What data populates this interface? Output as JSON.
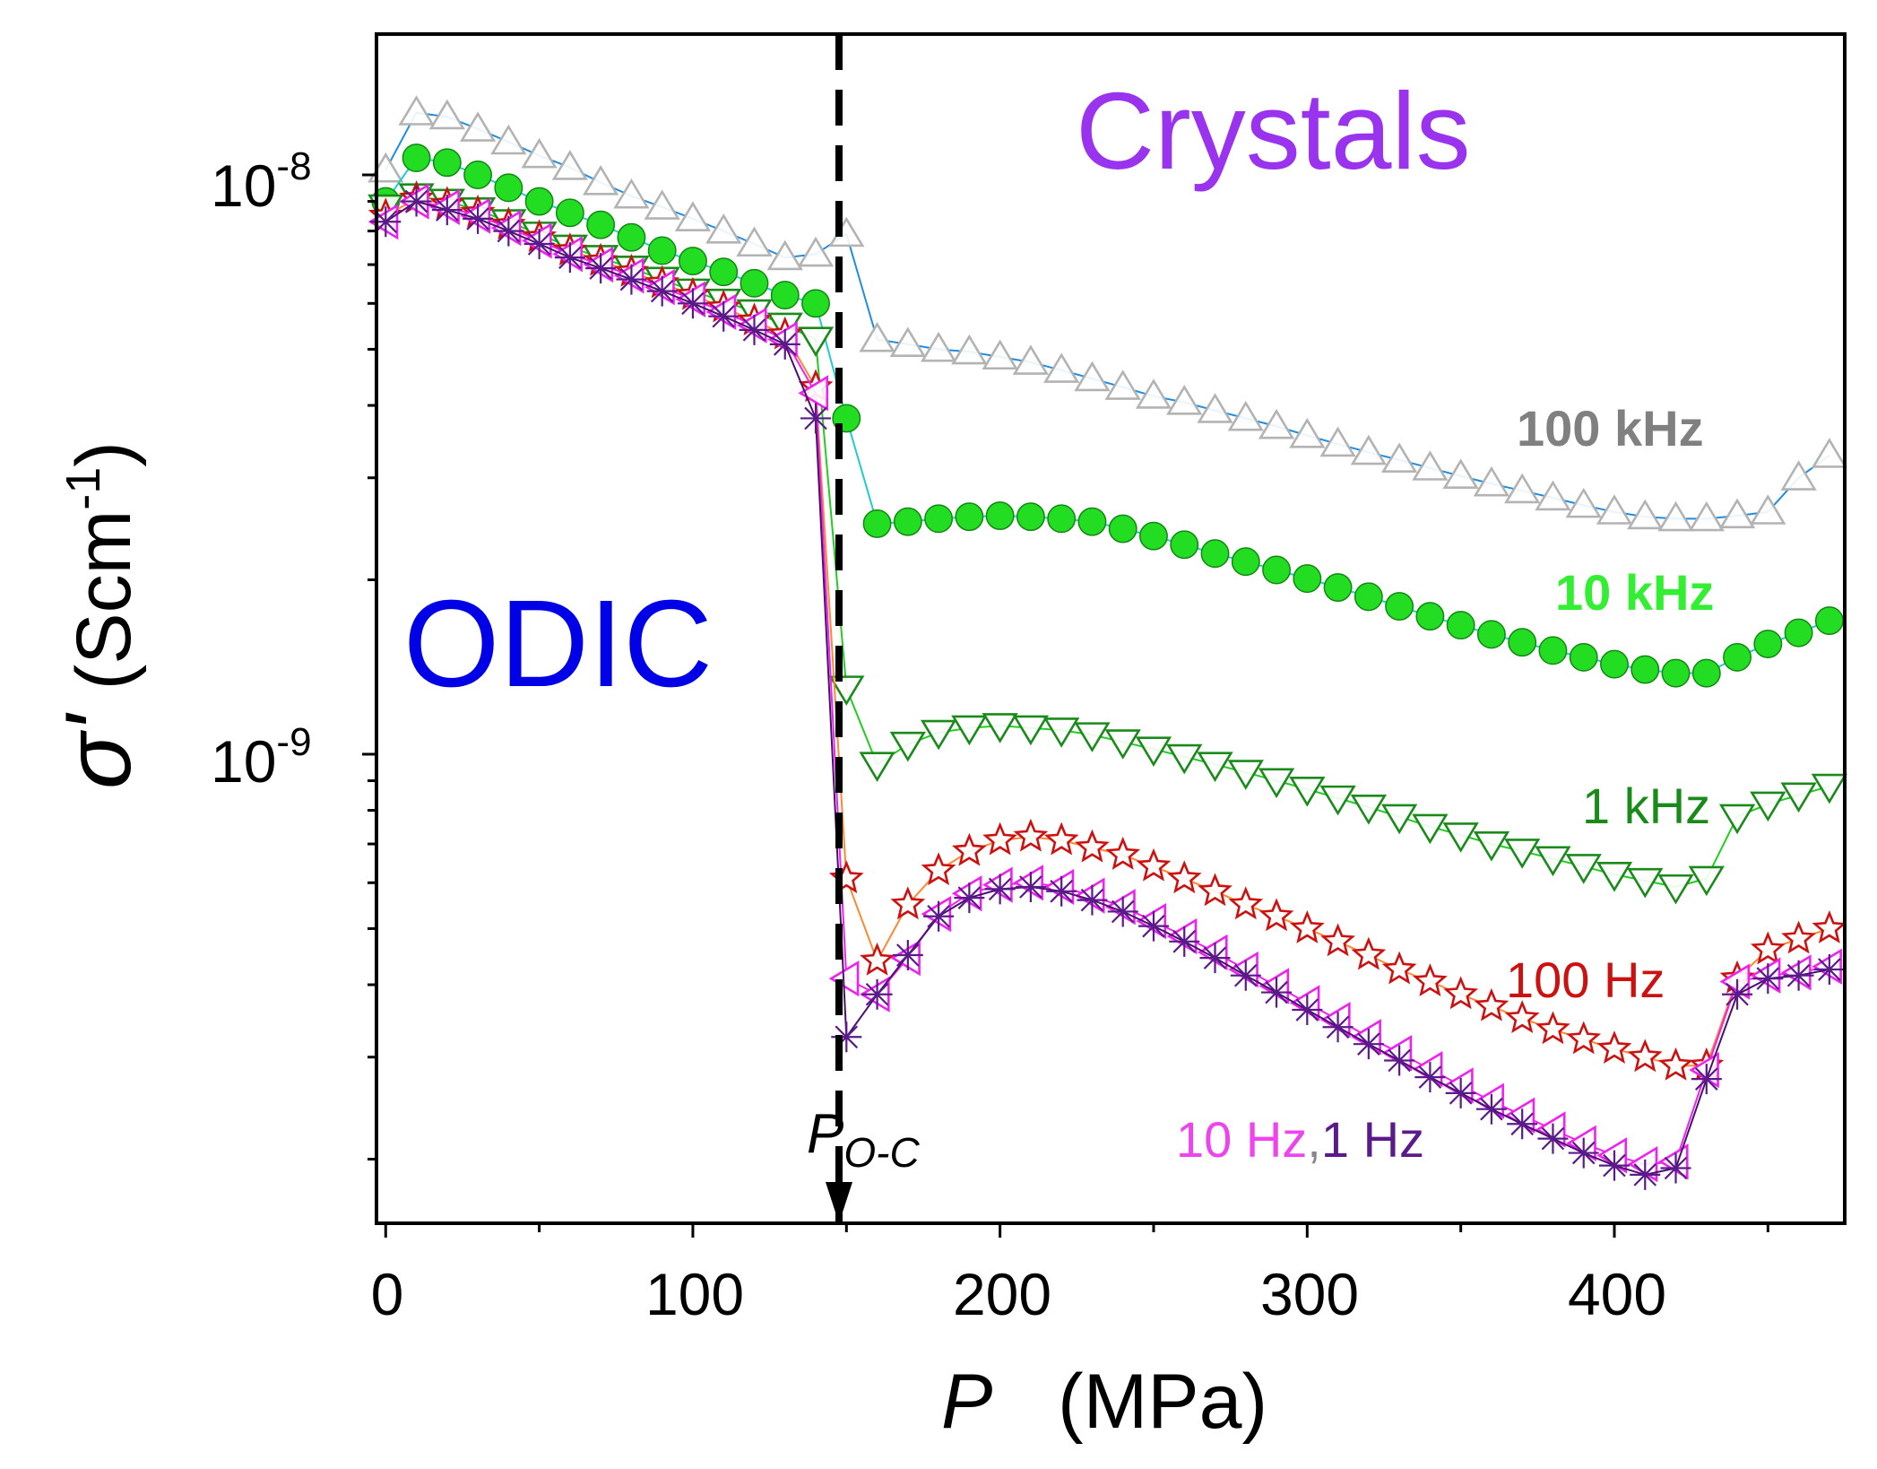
{
  "chart_data": {
    "type": "line",
    "title": "",
    "xlabel": "P",
    "xunit": "(MPa)",
    "ylabel": "σ'",
    "yunit_base": "(Scm",
    "yunit_exp": "-1",
    "yunit_close": ")",
    "xlim": [
      -3,
      475
    ],
    "ylog": true,
    "ylim": [
      1.55e-10,
      1.75e-08
    ],
    "x_ticks": [
      0,
      100,
      200,
      300,
      400
    ],
    "x_tick_labels": [
      "0",
      "100",
      "200",
      "300",
      "400"
    ],
    "y_ticks": [
      1e-09,
      1e-08
    ],
    "y_tick_labels": [
      {
        "base": "10",
        "exp": "-9"
      },
      {
        "base": "10",
        "exp": "-8"
      }
    ],
    "grid": false,
    "annotations": {
      "odic": "ODIC",
      "crystals": "Crystals",
      "transition_main": "P",
      "transition_sub": "O-C",
      "transition_x": 147
    },
    "series": [
      {
        "name": "100 kHz",
        "label_text": "100 kHz",
        "marker": "triangle-up-open",
        "color": "#b3b3b3",
        "line_color": "#1f8ee0",
        "label_color": "#808080",
        "x": [
          0,
          10,
          20,
          30,
          40,
          50,
          60,
          70,
          80,
          90,
          100,
          110,
          120,
          130,
          140,
          150,
          160,
          170,
          180,
          190,
          200,
          210,
          220,
          230,
          240,
          250,
          260,
          270,
          280,
          290,
          300,
          310,
          320,
          330,
          340,
          350,
          360,
          370,
          380,
          390,
          400,
          410,
          420,
          430,
          440,
          450,
          460,
          470
        ],
        "y": [
          1.02e-08,
          1.28e-08,
          1.26e-08,
          1.2e-08,
          1.14e-08,
          1.08e-08,
          1.03e-08,
          9.7e-09,
          9.2e-09,
          8.8e-09,
          8.4e-09,
          8e-09,
          7.6e-09,
          7.2e-09,
          7.3e-09,
          7.9e-09,
          5.2e-09,
          5.1e-09,
          5e-09,
          4.95e-09,
          4.85e-09,
          4.75e-09,
          4.6e-09,
          4.45e-09,
          4.3e-09,
          4.15e-09,
          4.05e-09,
          3.92e-09,
          3.8e-09,
          3.68e-09,
          3.55e-09,
          3.43e-09,
          3.32e-09,
          3.22e-09,
          3.12e-09,
          3.02e-09,
          2.93e-09,
          2.85e-09,
          2.77e-09,
          2.69e-09,
          2.62e-09,
          2.57e-09,
          2.55e-09,
          2.55e-09,
          2.58e-09,
          2.62e-09,
          3e-09,
          3.28e-09
        ]
      },
      {
        "name": "10 kHz",
        "label_text": "10 kHz",
        "marker": "circle-filled",
        "color": "#22dd22",
        "line_color": "#22cccc",
        "label_color": "#33ee33",
        "x": [
          0,
          10,
          20,
          30,
          40,
          50,
          60,
          70,
          80,
          90,
          100,
          110,
          120,
          130,
          140,
          150,
          160,
          170,
          180,
          190,
          200,
          210,
          220,
          230,
          240,
          250,
          260,
          270,
          280,
          290,
          300,
          310,
          320,
          330,
          340,
          350,
          360,
          370,
          380,
          390,
          400,
          410,
          420,
          430,
          440,
          450,
          460,
          470
        ],
        "y": [
          9e-09,
          1.07e-08,
          1.05e-08,
          1e-08,
          9.5e-09,
          9e-09,
          8.6e-09,
          8.2e-09,
          7.8e-09,
          7.4e-09,
          7.1e-09,
          6.8e-09,
          6.5e-09,
          6.2e-09,
          6e-09,
          3.8e-09,
          2.5e-09,
          2.52e-09,
          2.55e-09,
          2.57e-09,
          2.58e-09,
          2.57e-09,
          2.55e-09,
          2.52e-09,
          2.45e-09,
          2.38e-09,
          2.3e-09,
          2.22e-09,
          2.15e-09,
          2.08e-09,
          2.01e-09,
          1.94e-09,
          1.87e-09,
          1.8e-09,
          1.73e-09,
          1.67e-09,
          1.61e-09,
          1.56e-09,
          1.51e-09,
          1.47e-09,
          1.43e-09,
          1.4e-09,
          1.38e-09,
          1.38e-09,
          1.47e-09,
          1.55e-09,
          1.62e-09,
          1.7e-09
        ]
      },
      {
        "name": "1 kHz",
        "label_text": "1 kHz",
        "marker": "triangle-down-open",
        "color": "#1a8a1a",
        "line_color": "#22cc22",
        "label_color": "#1a8a1a",
        "x": [
          0,
          10,
          20,
          30,
          40,
          50,
          60,
          70,
          80,
          90,
          100,
          110,
          120,
          130,
          140,
          150,
          160,
          170,
          180,
          190,
          200,
          210,
          220,
          230,
          240,
          250,
          260,
          270,
          280,
          290,
          300,
          310,
          320,
          330,
          340,
          350,
          360,
          370,
          380,
          390,
          400,
          410,
          420,
          430,
          440,
          450,
          460,
          470
        ],
        "y": [
          8.8e-09,
          9.2e-09,
          9e-09,
          8.7e-09,
          8.3e-09,
          7.9e-09,
          7.5e-09,
          7.2e-09,
          6.9e-09,
          6.6e-09,
          6.3e-09,
          6.05e-09,
          5.8e-09,
          5.5e-09,
          5.2e-09,
          1.3e-09,
          9.6e-10,
          1.04e-09,
          1.09e-09,
          1.11e-09,
          1.12e-09,
          1.11e-09,
          1.1e-09,
          1.08e-09,
          1.05e-09,
          1.02e-09,
          9.9e-10,
          9.6e-10,
          9.3e-10,
          9e-10,
          8.7e-10,
          8.4e-10,
          8.1e-10,
          7.8e-10,
          7.5e-10,
          7.25e-10,
          7e-10,
          6.8e-10,
          6.6e-10,
          6.4e-10,
          6.2e-10,
          6.05e-10,
          5.9e-10,
          6.1e-10,
          7.8e-10,
          8.2e-10,
          8.5e-10,
          8.8e-10
        ]
      },
      {
        "name": "100 Hz",
        "label_text": "100 Hz",
        "marker": "star-open",
        "color": "#cc1111",
        "line_color": "#ff8833",
        "label_color": "#cc1111",
        "x": [
          0,
          10,
          20,
          30,
          40,
          50,
          60,
          70,
          80,
          90,
          100,
          110,
          120,
          130,
          140,
          150,
          160,
          170,
          180,
          190,
          200,
          210,
          220,
          230,
          240,
          250,
          260,
          270,
          280,
          290,
          300,
          310,
          320,
          330,
          340,
          350,
          360,
          370,
          380,
          390,
          400,
          410,
          420,
          430,
          440,
          450,
          460,
          470
        ],
        "y": [
          8.5e-09,
          9.1e-09,
          8.9e-09,
          8.6e-09,
          8.2e-09,
          7.8e-09,
          7.4e-09,
          7.1e-09,
          6.8e-09,
          6.5e-09,
          6.2e-09,
          5.9e-09,
          5.6e-09,
          5.3e-09,
          4.3e-09,
          6.1e-10,
          4.4e-10,
          5.5e-10,
          6.3e-10,
          6.8e-10,
          7.1e-10,
          7.2e-10,
          7.1e-10,
          6.9e-10,
          6.7e-10,
          6.4e-10,
          6.1e-10,
          5.8e-10,
          5.5e-10,
          5.25e-10,
          5e-10,
          4.75e-10,
          4.5e-10,
          4.25e-10,
          4.05e-10,
          3.85e-10,
          3.67e-10,
          3.5e-10,
          3.35e-10,
          3.22e-10,
          3.1e-10,
          3e-10,
          2.9e-10,
          2.9e-10,
          4.1e-10,
          4.6e-10,
          4.8e-10,
          5e-10
        ]
      },
      {
        "name": "10 Hz",
        "label_text": "10 Hz",
        "marker": "triangle-left-open",
        "color": "#ee22ee",
        "line_color": "#ee22ee",
        "label_color": "#ee44ee",
        "x": [
          0,
          10,
          20,
          30,
          40,
          50,
          60,
          70,
          80,
          90,
          100,
          110,
          120,
          130,
          140,
          150,
          160,
          170,
          180,
          190,
          200,
          210,
          220,
          230,
          240,
          250,
          260,
          270,
          280,
          290,
          300,
          310,
          320,
          330,
          340,
          350,
          360,
          370,
          380,
          390,
          400,
          410,
          420,
          430,
          440,
          450,
          460,
          470
        ],
        "y": [
          8.3e-09,
          9e-09,
          8.8e-09,
          8.5e-09,
          8.1e-09,
          7.7e-09,
          7.3e-09,
          7e-09,
          6.7e-09,
          6.4e-09,
          6.1e-09,
          5.8e-09,
          5.5e-09,
          5.2e-09,
          4.2e-09,
          4.1e-10,
          3.85e-10,
          4.45e-10,
          5.3e-10,
          5.75e-10,
          5.95e-10,
          6e-10,
          5.9e-10,
          5.7e-10,
          5.45e-10,
          5.15e-10,
          4.85e-10,
          4.55e-10,
          4.25e-10,
          3.98e-10,
          3.72e-10,
          3.48e-10,
          3.25e-10,
          3.05e-10,
          2.86e-10,
          2.68e-10,
          2.52e-10,
          2.38e-10,
          2.25e-10,
          2.13e-10,
          2.03e-10,
          1.96e-10,
          1.98e-10,
          2.85e-10,
          4.05e-10,
          4.15e-10,
          4.2e-10,
          4.3e-10
        ]
      },
      {
        "name": "1 Hz",
        "label_text": "1 Hz",
        "marker": "asterisk",
        "color": "#5a1a8a",
        "line_color": "#4a1070",
        "label_color": "#5a1a8a",
        "x": [
          0,
          10,
          20,
          30,
          40,
          50,
          60,
          70,
          80,
          90,
          100,
          110,
          120,
          130,
          140,
          150,
          160,
          170,
          180,
          190,
          200,
          210,
          220,
          230,
          240,
          250,
          260,
          270,
          280,
          290,
          300,
          310,
          320,
          330,
          340,
          350,
          360,
          370,
          380,
          390,
          400,
          410,
          420,
          430,
          440,
          450,
          460,
          470
        ],
        "y": [
          8.3e-09,
          9e-09,
          8.7e-09,
          8.4e-09,
          8e-09,
          7.6e-09,
          7.2e-09,
          6.9e-09,
          6.6e-09,
          6.3e-09,
          6e-09,
          5.7e-09,
          5.4e-09,
          5.1e-09,
          3.8e-09,
          3.25e-10,
          3.85e-10,
          4.5e-10,
          5.25e-10,
          5.65e-10,
          5.85e-10,
          5.9e-10,
          5.8e-10,
          5.6e-10,
          5.35e-10,
          5.05e-10,
          4.75e-10,
          4.45e-10,
          4.15e-10,
          3.88e-10,
          3.62e-10,
          3.38e-10,
          3.16e-10,
          2.96e-10,
          2.77e-10,
          2.6e-10,
          2.44e-10,
          2.3e-10,
          2.17e-10,
          2.05e-10,
          1.95e-10,
          1.88e-10,
          1.93e-10,
          2.75e-10,
          3.85e-10,
          4.1e-10,
          4.15e-10,
          4.25e-10
        ]
      }
    ]
  }
}
